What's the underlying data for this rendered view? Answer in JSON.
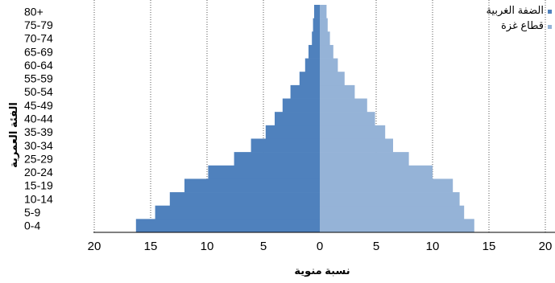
{
  "chart_data": {
    "type": "bar",
    "orientation": "horizontal",
    "variant": "population-pyramid",
    "categories": [
      "0-4",
      "5-9",
      "10-14",
      "15-19",
      "20-24",
      "25-29",
      "30-34",
      "35-39",
      "40-44",
      "45-49",
      "50-54",
      "55-59",
      "60-64",
      "65-69",
      "70-74",
      "75-79",
      "80+"
    ],
    "series": [
      {
        "name": "الضفة الغربية",
        "side": "left",
        "color": "#4F81BD",
        "values": [
          16.3,
          14.6,
          13.3,
          12.0,
          9.9,
          7.6,
          6.1,
          4.8,
          4.0,
          3.3,
          2.6,
          1.8,
          1.3,
          1.0,
          0.7,
          0.6,
          0.5
        ]
      },
      {
        "name": "قطاع غزة",
        "side": "right",
        "color": "#95B3D7",
        "values": [
          13.7,
          12.8,
          12.4,
          11.8,
          10.0,
          7.9,
          6.5,
          5.8,
          4.9,
          4.2,
          3.1,
          2.2,
          1.6,
          1.2,
          0.9,
          0.7,
          0.6
        ]
      }
    ],
    "xlabel": "نسبة منوية",
    "ylabel": "الفئة العمرية",
    "xticks": [
      "20",
      "15",
      "10",
      "5",
      "0",
      "5",
      "10",
      "15",
      "20"
    ],
    "xlim": [
      -20,
      20
    ],
    "grid": "vertical dotted",
    "legend_position": "top-right"
  }
}
